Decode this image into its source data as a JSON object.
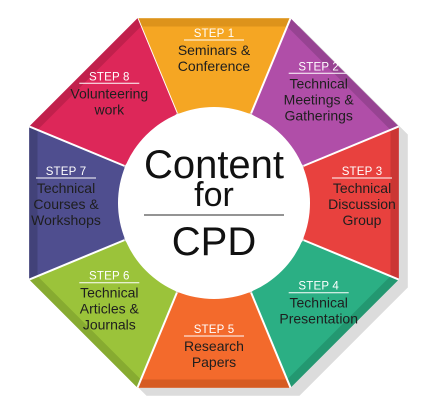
{
  "center": {
    "line1": "Content",
    "line2": "for",
    "line3": "CPD"
  },
  "segments": [
    {
      "step": "STEP 1",
      "lines": [
        "Seminars &",
        "Conference"
      ],
      "color": "#F5A623",
      "dark": "#C98316"
    },
    {
      "step": "STEP 2",
      "lines": [
        "Technical",
        "Meetings &",
        "Gatherings"
      ],
      "color": "#B04EA8",
      "dark": "#843A7F"
    },
    {
      "step": "STEP 3",
      "lines": [
        "Technical",
        "Discussion",
        "Group"
      ],
      "color": "#E8413E",
      "dark": "#B22D2B"
    },
    {
      "step": "STEP 4",
      "lines": [
        "Technical",
        "Presentation"
      ],
      "color": "#2BAF84",
      "dark": "#1D8563"
    },
    {
      "step": "STEP 5",
      "lines": [
        "Research",
        "Papers"
      ],
      "color": "#F36A2C",
      "dark": "#BE4E1C"
    },
    {
      "step": "STEP 6",
      "lines": [
        "Technical",
        "Articles &",
        "Journals"
      ],
      "color": "#9BC33A",
      "dark": "#76972A"
    },
    {
      "step": "STEP 7",
      "lines": [
        "Technical",
        "Courses &",
        "Workshops"
      ],
      "color": "#4F4E8F",
      "dark": "#393868"
    },
    {
      "step": "STEP 8",
      "lines": [
        "Volunteering",
        "work"
      ],
      "color": "#DD2759",
      "dark": "#A91B42"
    }
  ]
}
